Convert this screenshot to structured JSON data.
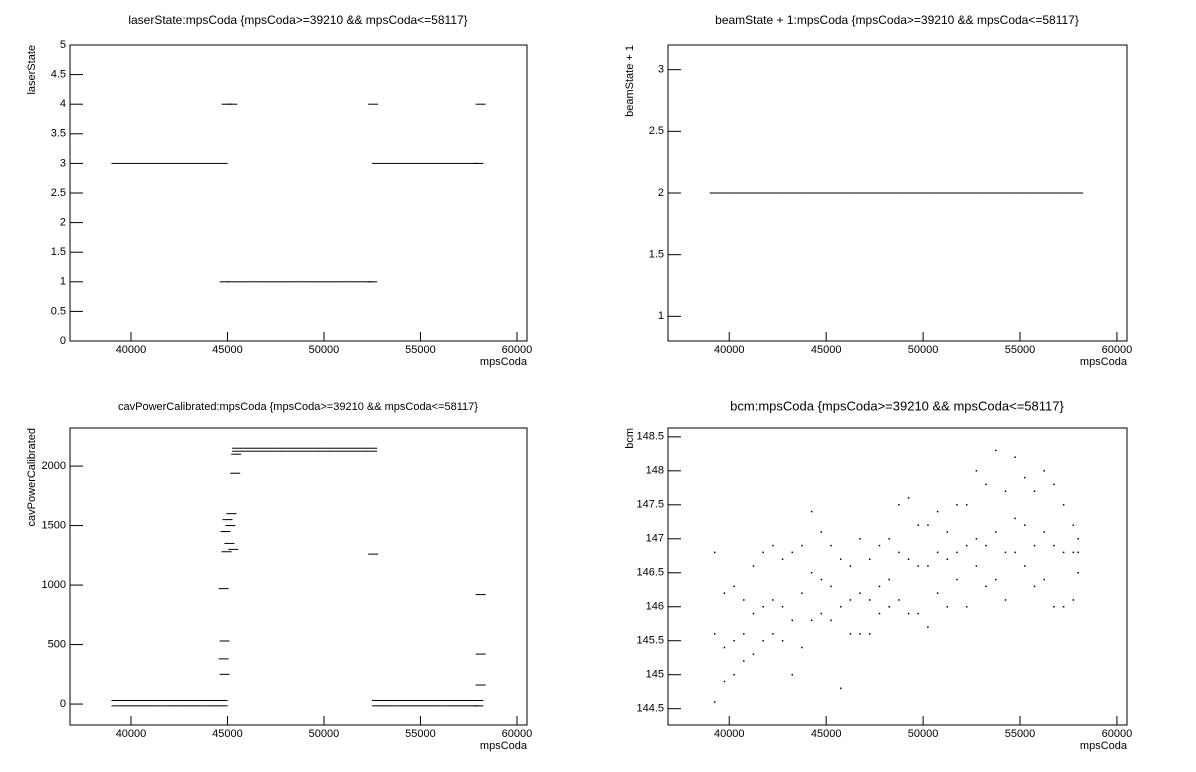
{
  "chart_data": [
    {
      "type": "scatter",
      "title": "laserState:mpsCoda {mpsCoda>=39210 && mpsCoda<=58117}",
      "xlabel": "mpsCoda",
      "ylabel": "laserState",
      "xlim": [
        36840,
        60520
      ],
      "xticks": [
        40000,
        45000,
        50000,
        55000,
        60000
      ],
      "ylim": [
        0,
        5
      ],
      "yticks": [
        0,
        0.5,
        1,
        1.5,
        2,
        2.5,
        3,
        3.5,
        4,
        4.5,
        5
      ],
      "x": [
        39250,
        39750,
        40250,
        40750,
        41250,
        41750,
        42250,
        42750,
        43250,
        43750,
        44250,
        44750,
        44950,
        45250,
        44850,
        45250,
        45750,
        46250,
        46750,
        47250,
        47750,
        48250,
        48750,
        49250,
        49750,
        50250,
        50750,
        51250,
        51750,
        52250,
        52500,
        52750,
        53250,
        53750,
        54250,
        54750,
        55250,
        55750,
        56250,
        56750,
        57250,
        57750,
        58000,
        52550,
        58117
      ],
      "y": [
        3,
        3,
        3,
        3,
        3,
        3,
        3,
        3,
        3,
        3,
        3,
        3,
        4,
        4,
        1,
        1,
        1,
        1,
        1,
        1,
        1,
        1,
        1,
        1,
        1,
        1,
        1,
        1,
        1,
        1,
        1,
        3,
        3,
        3,
        3,
        3,
        3,
        3,
        3,
        3,
        3,
        3,
        3,
        4,
        4
      ]
    },
    {
      "type": "scatter",
      "title": "beamState + 1:mpsCoda {mpsCoda>=39210 && mpsCoda<=58117}",
      "xlabel": "mpsCoda",
      "ylabel": "beamState + 1",
      "xlim": [
        36840,
        60520
      ],
      "xticks": [
        40000,
        45000,
        50000,
        55000,
        60000
      ],
      "ylim": [
        0.8,
        3.2
      ],
      "yticks": [
        1,
        1.5,
        2,
        2.5,
        3
      ],
      "x": [
        39250,
        39750,
        40250,
        40750,
        41250,
        41750,
        42250,
        42750,
        43250,
        43750,
        44250,
        44750,
        45250,
        45750,
        46250,
        46750,
        47250,
        47750,
        48250,
        48750,
        49250,
        49750,
        50250,
        50750,
        51250,
        51750,
        52250,
        52750,
        53250,
        53750,
        54250,
        54750,
        55250,
        55750,
        56250,
        56750,
        57250,
        57750,
        58000
      ],
      "y": [
        2,
        2,
        2,
        2,
        2,
        2,
        2,
        2,
        2,
        2,
        2,
        2,
        2,
        2,
        2,
        2,
        2,
        2,
        2,
        2,
        2,
        2,
        2,
        2,
        2,
        2,
        2,
        2,
        2,
        2,
        2,
        2,
        2,
        2,
        2,
        2,
        2,
        2,
        2
      ]
    },
    {
      "type": "scatter",
      "title": "cavPowerCalibrated:mpsCoda {mpsCoda>=39210 && mpsCoda<=58117}",
      "xlabel": "mpsCoda",
      "ylabel": "cavPowerCalibrated",
      "xlim": [
        36840,
        60520
      ],
      "xticks": [
        40000,
        45000,
        50000,
        55000,
        60000
      ],
      "ylim": [
        -176,
        2320
      ],
      "yticks": [
        0,
        500,
        1000,
        1500,
        2000
      ],
      "x": [
        39250,
        39250,
        39750,
        39750,
        40250,
        40250,
        40750,
        40750,
        41250,
        41250,
        41750,
        41750,
        42250,
        42250,
        42750,
        42750,
        43250,
        43250,
        43750,
        43750,
        44250,
        44250,
        44750,
        44750,
        44800,
        44850,
        44800,
        44850,
        44900,
        45000,
        45100,
        45200,
        45300,
        44950,
        45150,
        45400,
        45450,
        45500,
        45500,
        46000,
        46000,
        46500,
        46500,
        47000,
        47000,
        47500,
        47500,
        48000,
        48000,
        48500,
        48500,
        49000,
        49000,
        49500,
        49500,
        50000,
        50000,
        50500,
        50500,
        51000,
        51000,
        51500,
        51500,
        52000,
        52000,
        52500,
        52500,
        52550,
        52750,
        52750,
        53250,
        53250,
        53750,
        53750,
        54250,
        54250,
        54750,
        54750,
        55250,
        55250,
        55750,
        55750,
        56250,
        56250,
        56750,
        56750,
        57250,
        57250,
        57750,
        57750,
        58000,
        58000,
        58117,
        58117,
        58117
      ],
      "y": [
        30,
        -15,
        30,
        -15,
        30,
        -15,
        30,
        -15,
        30,
        -15,
        30,
        -15,
        30,
        -15,
        30,
        -15,
        30,
        -15,
        30,
        -15,
        30,
        -15,
        30,
        -15,
        970,
        530,
        380,
        250,
        1450,
        1550,
        1350,
        1600,
        1300,
        1280,
        1500,
        1940,
        2100,
        2150,
        2125,
        2150,
        2125,
        2150,
        2125,
        2150,
        2125,
        2150,
        2125,
        2150,
        2125,
        2150,
        2125,
        2150,
        2125,
        2150,
        2125,
        2150,
        2125,
        2150,
        2125,
        2150,
        2125,
        2150,
        2125,
        2150,
        2125,
        2150,
        2125,
        1260,
        30,
        -15,
        30,
        -15,
        30,
        -15,
        30,
        -15,
        30,
        -15,
        30,
        -15,
        30,
        -15,
        30,
        -15,
        30,
        -15,
        30,
        -15,
        30,
        -15,
        30,
        -15,
        920,
        420,
        160
      ]
    },
    {
      "type": "scatter",
      "title": "bcm:mpsCoda {mpsCoda>=39210 && mpsCoda<=58117}",
      "xlabel": "mpsCoda",
      "ylabel": "bcm",
      "xlim": [
        36840,
        60520
      ],
      "xticks": [
        40000,
        45000,
        50000,
        55000,
        60000
      ],
      "ylim": [
        144.26,
        148.63
      ],
      "yticks": [
        144.5,
        145,
        145.5,
        146,
        146.5,
        147,
        147.5,
        148,
        148.5
      ],
      "x": [
        39250,
        39250,
        39250,
        39750,
        39750,
        39750,
        40250,
        40250,
        40250,
        40750,
        40750,
        40750,
        41250,
        41250,
        41250,
        41750,
        41750,
        41750,
        42250,
        42250,
        42250,
        42750,
        42750,
        42750,
        43250,
        43250,
        43250,
        43750,
        43750,
        43750,
        44250,
        44250,
        44250,
        44750,
        44750,
        44750,
        45250,
        45250,
        45250,
        45750,
        45750,
        45750,
        46250,
        46250,
        46250,
        46750,
        46750,
        46750,
        47250,
        47250,
        47250,
        47750,
        47750,
        47750,
        48250,
        48250,
        48250,
        48750,
        48750,
        48750,
        49250,
        49250,
        49250,
        49750,
        49750,
        49750,
        50250,
        50250,
        50250,
        50750,
        50750,
        50750,
        51250,
        51250,
        51250,
        51750,
        51750,
        51750,
        52250,
        52250,
        52250,
        52750,
        52750,
        52750,
        53250,
        53250,
        53250,
        53750,
        53750,
        53750,
        54250,
        54250,
        54250,
        54750,
        54750,
        54750,
        55250,
        55250,
        55250,
        55750,
        55750,
        55750,
        56250,
        56250,
        56250,
        56750,
        56750,
        56750,
        57250,
        57250,
        57250,
        57750,
        57750,
        57750,
        58000,
        58000,
        58000
      ],
      "y": [
        144.6,
        145.6,
        146.8,
        144.9,
        145.4,
        146.2,
        145.0,
        145.5,
        146.3,
        145.2,
        145.6,
        146.1,
        145.3,
        145.9,
        146.6,
        145.5,
        146.0,
        146.8,
        145.6,
        146.1,
        146.9,
        145.5,
        146.0,
        146.7,
        145.0,
        145.8,
        146.8,
        145.4,
        146.2,
        146.9,
        145.8,
        146.5,
        147.4,
        145.9,
        146.4,
        147.1,
        145.8,
        146.3,
        146.9,
        144.8,
        146.0,
        146.7,
        145.6,
        146.1,
        146.6,
        145.6,
        146.2,
        147.0,
        145.6,
        146.1,
        146.7,
        145.9,
        146.3,
        146.9,
        146.0,
        146.4,
        147.0,
        146.1,
        146.8,
        147.5,
        145.9,
        146.7,
        147.6,
        145.9,
        146.6,
        147.2,
        145.7,
        146.6,
        147.2,
        146.2,
        146.8,
        147.4,
        146.0,
        146.7,
        147.1,
        146.4,
        146.8,
        147.5,
        146.0,
        146.9,
        147.5,
        146.6,
        147.0,
        148.0,
        146.3,
        146.9,
        147.8,
        146.4,
        147.1,
        148.3,
        146.1,
        146.8,
        147.7,
        146.8,
        147.3,
        148.2,
        146.6,
        147.2,
        147.9,
        146.3,
        146.9,
        147.7,
        146.4,
        147.1,
        148.0,
        146.0,
        146.9,
        147.8,
        146.0,
        146.8,
        147.5,
        146.1,
        146.8,
        147.2,
        146.5,
        146.8,
        147.0
      ]
    }
  ]
}
